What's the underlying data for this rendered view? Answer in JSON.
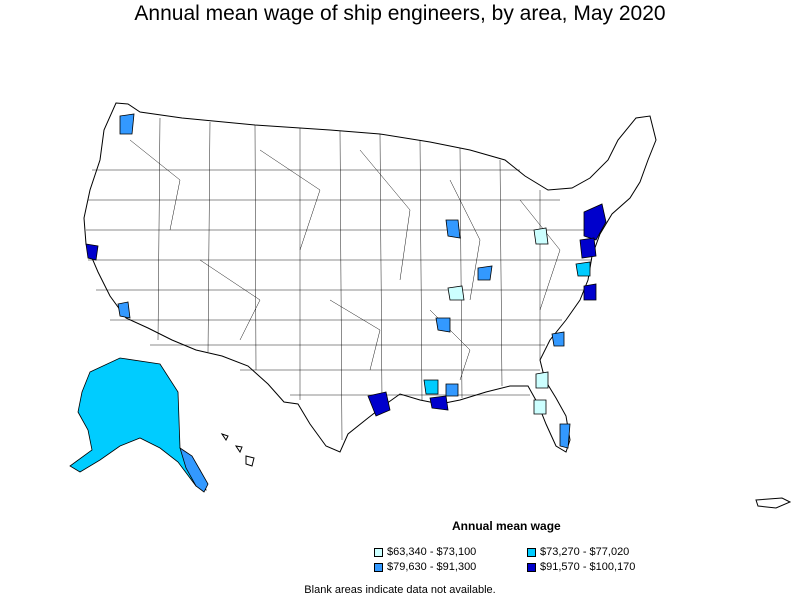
{
  "title": "Annual mean wage of ship engineers, by area, May 2020",
  "legend": {
    "title": "Annual mean wage",
    "items": [
      {
        "label": "$63,340 - $73,100",
        "color": "#ccffff"
      },
      {
        "label": "$73,270 - $77,020",
        "color": "#00ccff"
      },
      {
        "label": "$79,630 - $91,300",
        "color": "#3399ff"
      },
      {
        "label": "$91,570 - $100,170",
        "color": "#0000cc"
      }
    ]
  },
  "footnote": "Blank areas indicate data not available."
}
